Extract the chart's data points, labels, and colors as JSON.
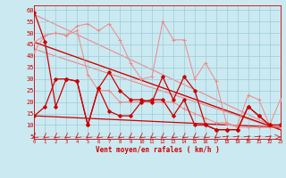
{
  "bg_color": "#cbe9f0",
  "grid_color": "#99ccdd",
  "line_color_dark": "#cc0000",
  "line_color_light": "#ee8888",
  "line_color_medium": "#dd6666",
  "xlabel": "Vent moyen/en rafales ( km/h )",
  "ylabel_ticks": [
    5,
    10,
    15,
    20,
    25,
    30,
    35,
    40,
    45,
    50,
    55,
    60
  ],
  "x_ticks": [
    0,
    1,
    2,
    3,
    4,
    5,
    6,
    7,
    8,
    9,
    10,
    11,
    12,
    13,
    14,
    15,
    16,
    17,
    18,
    19,
    20,
    21,
    22,
    23
  ],
  "xlim": [
    0,
    23
  ],
  "ylim": [
    4,
    62
  ],
  "series": {
    "dark_zigzag": [
      14,
      18,
      30,
      30,
      29,
      10,
      26,
      33,
      25,
      21,
      21,
      20,
      31,
      21,
      31,
      25,
      10,
      8,
      8,
      8,
      18,
      14,
      10,
      10
    ],
    "dark_spike": [
      59,
      46,
      18,
      30,
      29,
      10,
      26,
      16,
      14,
      14,
      20,
      21,
      21,
      14,
      21,
      10,
      10,
      8,
      8,
      8,
      18,
      14,
      10,
      10
    ],
    "light_upper": [
      46,
      49,
      50,
      49,
      53,
      54,
      51,
      54,
      47,
      37,
      30,
      31,
      55,
      47,
      47,
      30,
      37,
      29,
      10,
      10,
      23,
      21,
      10,
      21
    ],
    "light_lower": [
      42,
      49,
      50,
      49,
      51,
      32,
      25,
      25,
      20,
      20,
      20,
      20,
      20,
      20,
      17,
      15,
      13,
      11,
      11,
      9,
      9,
      9,
      9,
      9
    ]
  },
  "trend_lines": {
    "light1": {
      "x0": 0,
      "y0": 46,
      "x1": 23,
      "y1": 8
    },
    "light2": {
      "x0": 0,
      "y0": 43,
      "x1": 23,
      "y1": 8
    },
    "light3": {
      "x0": 0,
      "y0": 58,
      "x1": 23,
      "y1": 8
    },
    "dark1": {
      "x0": 0,
      "y0": 46,
      "x1": 23,
      "y1": 8
    },
    "dark2": {
      "x0": 0,
      "y0": 14,
      "x1": 23,
      "y1": 9
    }
  },
  "wind_arrows_sw": [
    0,
    1,
    2,
    3,
    4,
    5,
    6,
    7,
    8,
    9,
    10,
    11,
    12,
    13,
    14,
    15,
    16,
    17
  ],
  "wind_arrows_ne": [
    18,
    19,
    20,
    21,
    22
  ],
  "wind_arrows_e": [
    23
  ]
}
